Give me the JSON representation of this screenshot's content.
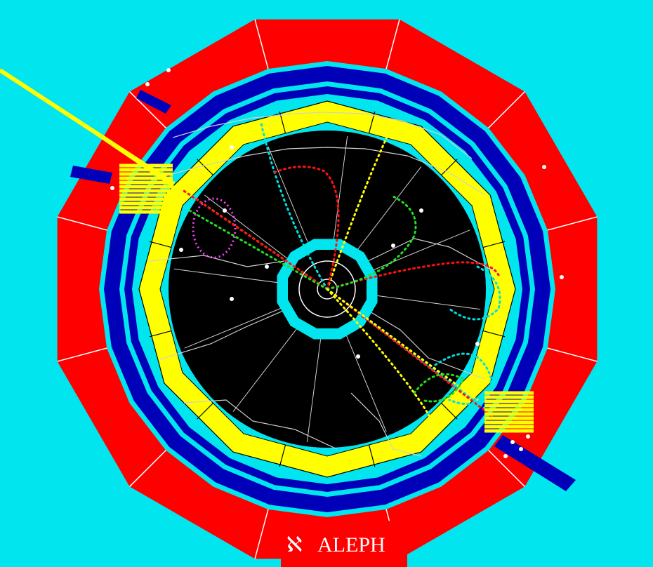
{
  "detector": {
    "name": "ALEPH",
    "logo_glyph": "ℵ"
  },
  "colors": {
    "background": "#00e5ee",
    "muon_chamber": "#ff0000",
    "hcal_iron": "#0000b8",
    "coil_gap": "#00e5ee",
    "ecal": "#ffff00",
    "tpc": "#000000",
    "tpc_sector_lines": "#d0d0d0",
    "itc": "#00e5ee",
    "track_yellow": "#ffff00",
    "track_red": "#ff1010",
    "track_cyan": "#00e0e0",
    "track_green": "#20e020",
    "track_magenta": "#ff40ff",
    "deposit_white": "#ffffff"
  },
  "event_display": {
    "jets": [
      {
        "direction": "upper-left"
      },
      {
        "direction": "lower-right"
      }
    ]
  }
}
